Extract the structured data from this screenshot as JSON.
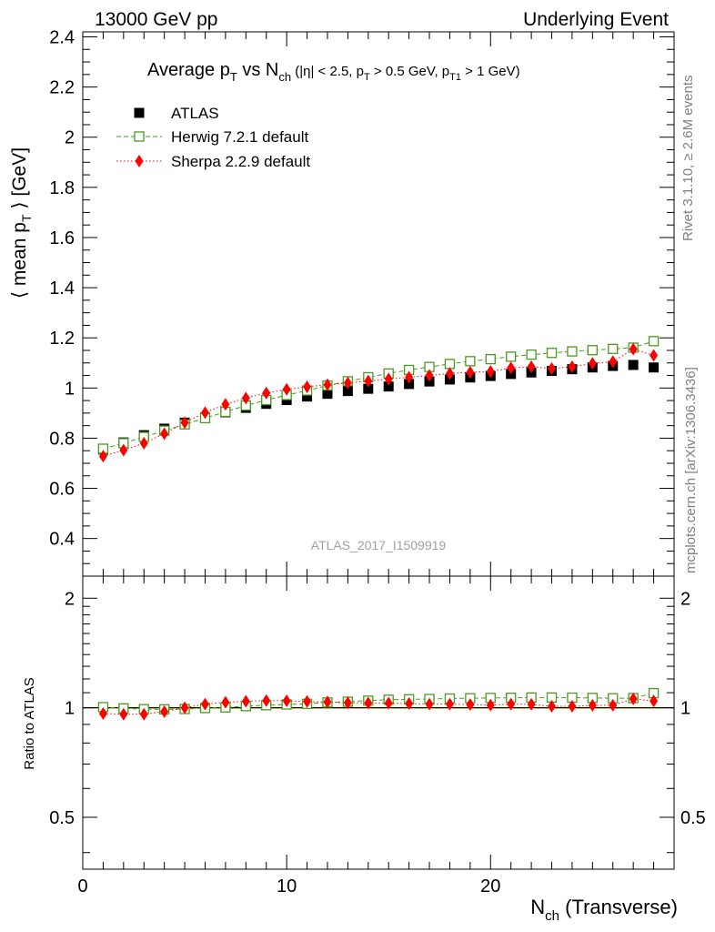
{
  "header": {
    "left": "13000 GeV pp",
    "right": "Underlying Event"
  },
  "title": {
    "main": "Average p",
    "main_sub": "T",
    "vs": " vs N",
    "vs_sub": "ch",
    "cuts_a": " (|η| < 2.5, p",
    "cuts_a_sub": "T",
    "cuts_b": " > 0.5 GeV, p",
    "cuts_b_sub": "T1",
    "cuts_c": " > 1 GeV)"
  },
  "ylabel": {
    "pre": "⟨ mean p",
    "sub": "T",
    "post": " ⟩ [GeV]"
  },
  "ratio_ylabel": "Ratio to ATLAS",
  "xlabel": {
    "main": "N",
    "sub": "ch",
    "post": " (Transverse)"
  },
  "side_text_top": "Rivet 3.1.10, ≥ 2.6M events",
  "side_text_bottom": "mcplots.cern.ch [arXiv:1306.3436]",
  "watermark": "ATLAS_2017_I1509919",
  "legend": [
    {
      "label": "ATLAS",
      "marker": "filled-square",
      "color": "#000000"
    },
    {
      "label": "Herwig 7.2.1 default",
      "marker": "open-square",
      "color": "#4a9a1f"
    },
    {
      "label": "Sherpa 2.2.9 default",
      "marker": "diamond",
      "color": "#ff0000"
    }
  ],
  "chart_data": {
    "type": "scatter",
    "xlim": [
      0,
      29
    ],
    "ylim": [
      0.25,
      2.42
    ],
    "ratio_ylim": [
      0.36,
      2.3
    ],
    "x_ticks": [
      "0",
      "10",
      "20"
    ],
    "y_ticks": [
      "0.4",
      "0.6",
      "0.8",
      "1",
      "1.2",
      "1.4",
      "1.6",
      "1.8",
      "2",
      "2.2",
      "2.4"
    ],
    "ratio_ticks": [
      "0.5",
      "1",
      "2"
    ],
    "x": [
      1,
      2,
      3,
      4,
      5,
      6,
      7,
      8,
      9,
      10,
      11,
      12,
      13,
      14,
      15,
      16,
      17,
      18,
      19,
      20,
      21,
      22,
      23,
      24,
      25,
      26,
      27,
      28
    ],
    "series": [
      {
        "name": "ATLAS",
        "values": [
          0.755,
          0.783,
          0.812,
          0.838,
          0.862,
          0.882,
          0.903,
          0.921,
          0.937,
          0.952,
          0.966,
          0.977,
          0.988,
          0.997,
          1.006,
          1.016,
          1.026,
          1.034,
          1.042,
          1.048,
          1.056,
          1.062,
          1.068,
          1.075,
          1.082,
          1.088,
          1.092,
          1.082
        ]
      },
      {
        "name": "Herwig 7.2.1 default",
        "values": [
          0.758,
          0.78,
          0.805,
          0.83,
          0.855,
          0.88,
          0.905,
          0.93,
          0.952,
          0.972,
          0.99,
          1.01,
          1.027,
          1.043,
          1.058,
          1.072,
          1.084,
          1.096,
          1.107,
          1.115,
          1.125,
          1.133,
          1.14,
          1.146,
          1.151,
          1.156,
          1.161,
          1.187
        ]
      },
      {
        "name": "Sherpa 2.2.9 default",
        "values": [
          0.728,
          0.752,
          0.78,
          0.818,
          0.862,
          0.902,
          0.935,
          0.96,
          0.98,
          0.995,
          1.005,
          1.013,
          1.02,
          1.028,
          1.036,
          1.043,
          1.05,
          1.058,
          1.063,
          1.066,
          1.08,
          1.085,
          1.078,
          1.085,
          1.098,
          1.105,
          1.155,
          1.13
        ]
      }
    ],
    "ratio_series": [
      {
        "name": "Herwig 7.2.1 default",
        "values": [
          1.004,
          0.996,
          0.991,
          0.99,
          0.992,
          0.998,
          1.002,
          1.01,
          1.016,
          1.021,
          1.025,
          1.034,
          1.039,
          1.046,
          1.052,
          1.055,
          1.057,
          1.06,
          1.062,
          1.064,
          1.065,
          1.067,
          1.067,
          1.066,
          1.064,
          1.062,
          1.063,
          1.097
        ]
      },
      {
        "name": "Sherpa 2.2.9 default",
        "values": [
          0.964,
          0.96,
          0.96,
          0.976,
          1.0,
          1.023,
          1.035,
          1.042,
          1.046,
          1.045,
          1.04,
          1.037,
          1.032,
          1.031,
          1.03,
          1.027,
          1.023,
          1.023,
          1.02,
          1.017,
          1.023,
          1.022,
          1.009,
          1.009,
          1.015,
          1.016,
          1.058,
          1.044
        ]
      }
    ]
  }
}
